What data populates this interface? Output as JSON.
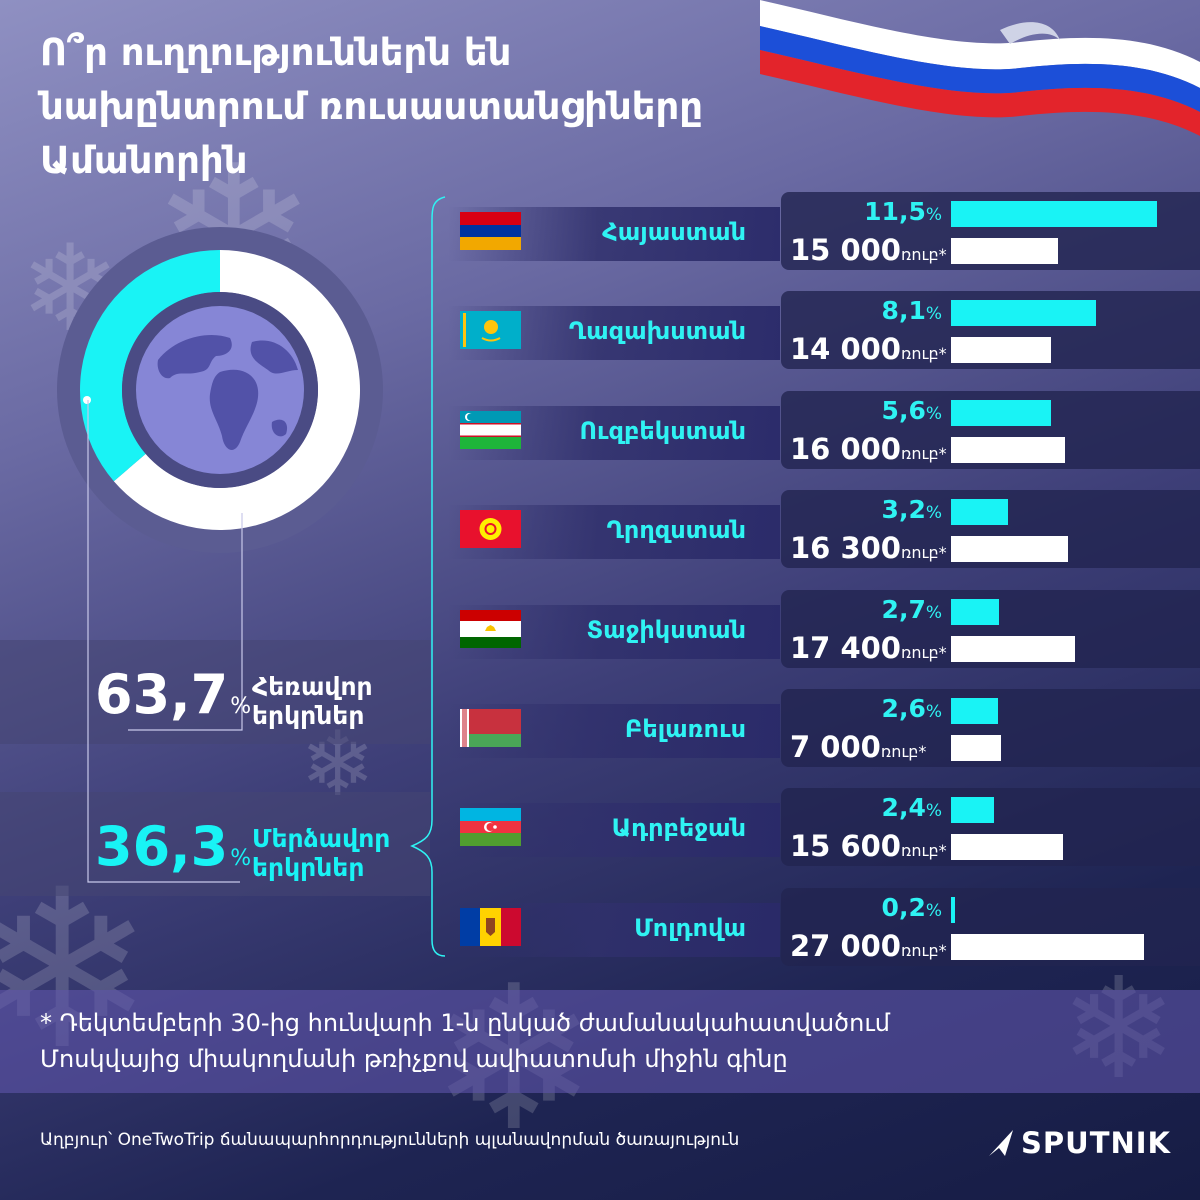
{
  "title_lines": [
    "Ո՞ր ուղղություններն են",
    "նախընտրում ռուսաստանցիները",
    "Ամանորին"
  ],
  "icons": {
    "flag_ribbon": "russian-flag-ribbon-icon",
    "globe": "globe-icon",
    "snowflake": "snowflake-icon",
    "logo_mark": "sputnik-arrow-icon"
  },
  "colors": {
    "accent": "#19f3f5",
    "white": "#ffffff",
    "country_text": "#2ff3f3"
  },
  "chart_data": [
    {
      "type": "pie",
      "slices": [
        {
          "value": 63.7,
          "value_label": "63,7",
          "unit": "%",
          "label_line1": "Հեռավոր",
          "label_line2": "երկրներ",
          "color": "#ffffff"
        },
        {
          "value": 36.3,
          "value_label": "36,3",
          "unit": "%",
          "label_line1": "Մերձավոր",
          "label_line2": "երկրներ",
          "color": "#19f3f5"
        }
      ]
    },
    {
      "type": "bar",
      "categories": [
        "Հայաստան",
        "Ղազախստան",
        "Ուզբեկստան",
        "Ղրղզստան",
        "Տաջիկստան",
        "Բելառուս",
        "Ադրբեջան",
        "Մոլդովա"
      ],
      "flags": [
        "armenia-flag-icon",
        "kazakhstan-flag-icon",
        "uzbekistan-flag-icon",
        "kyrgyzstan-flag-icon",
        "tajikistan-flag-icon",
        "belarus-flag-icon",
        "azerbaijan-flag-icon",
        "moldova-flag-icon"
      ],
      "series": [
        {
          "values": [
            11.5,
            8.1,
            5.6,
            3.2,
            2.7,
            2.6,
            2.4,
            0.2
          ],
          "labels": [
            "11,5",
            "8,1",
            "5,6",
            "3,2",
            "2,7",
            "2,6",
            "2,4",
            "0,2"
          ],
          "unit": "%",
          "color": "#19f3f5"
        },
        {
          "values": [
            15000,
            14000,
            16000,
            16300,
            17400,
            7000,
            15600,
            27000
          ],
          "labels": [
            "15 000",
            "14 000",
            "16 000",
            "16 300",
            "17 400",
            "7 000",
            "15 600",
            "27 000"
          ],
          "unit": "ռուբ*",
          "color": "#ffffff"
        }
      ]
    }
  ],
  "footnote_lines": [
    "* Դեկտեմբերի 30-ից հունվարի 1-ն ընկած ժամանակահատվածում",
    "Մոսկվայից միակողմանի թռիչքով ավիատոմսի միջին գինը"
  ],
  "source": "Աղբյուր՝  OneTwoTrip ճանապարհորդությունների պլանավորման ծառայություն",
  "logo": "SPUTNIK"
}
